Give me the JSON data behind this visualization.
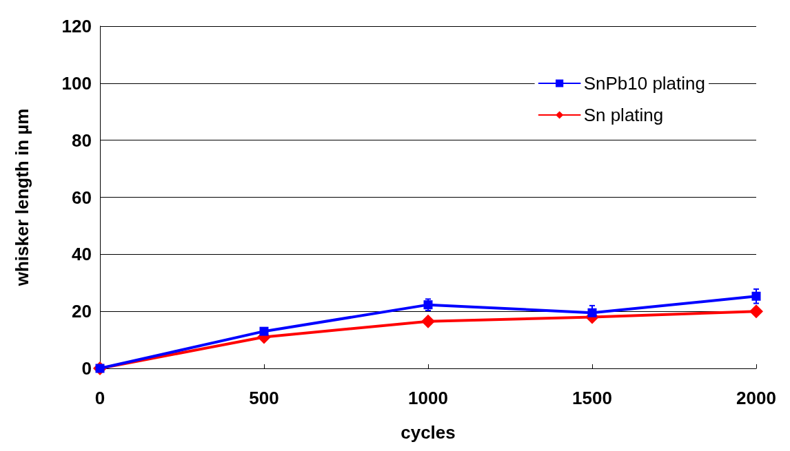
{
  "chart_data": {
    "type": "line",
    "xlabel": "cycles",
    "ylabel": "whisker length in µm",
    "x": [
      0,
      500,
      1000,
      1500,
      2000
    ],
    "series": [
      {
        "name": "SnPb10 plating",
        "color": "#0000ff",
        "marker": "square",
        "values": [
          0,
          13,
          22.3,
          19.5,
          25.3
        ],
        "errors": [
          null,
          null,
          2,
          2.5,
          2.5
        ]
      },
      {
        "name": "Sn plating",
        "color": "#ff0000",
        "marker": "diamond",
        "values": [
          0,
          11,
          16.5,
          18,
          20
        ]
      }
    ],
    "xlim": [
      0,
      2000
    ],
    "xticks": [
      0,
      500,
      1000,
      1500,
      2000
    ],
    "ylim": [
      0,
      120
    ],
    "yticks": [
      0,
      20,
      40,
      60,
      80,
      100,
      120
    ],
    "grid": "y",
    "legend": "top right",
    "line_style": "solid"
  }
}
